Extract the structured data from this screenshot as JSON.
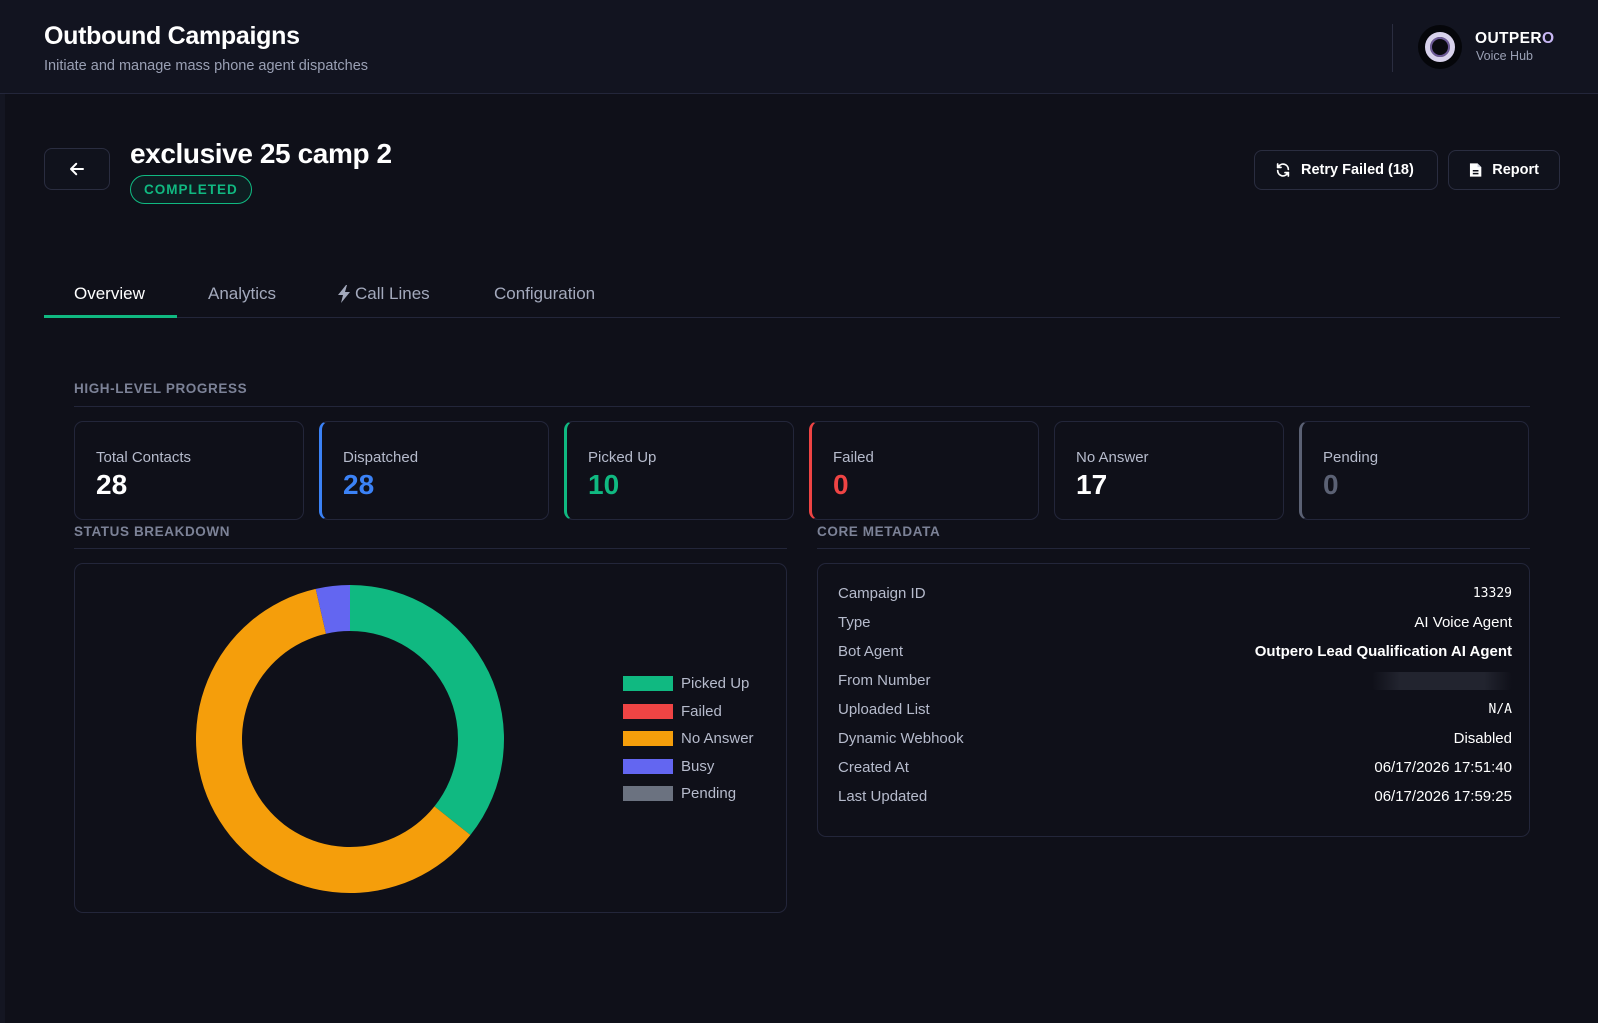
{
  "header": {
    "title": "Outbound Campaigns",
    "subtitle": "Initiate and manage mass phone agent dispatches",
    "brand": {
      "name_main": "OUTPER",
      "name_accent": "O",
      "sub": "Voice Hub"
    }
  },
  "campaign": {
    "name": "exclusive 25 camp 2",
    "status": "COMPLETED",
    "retry_label": "Retry Failed (18)",
    "report_label": "Report"
  },
  "tabs": [
    {
      "label": "Overview",
      "active": true
    },
    {
      "label": "Analytics",
      "active": false
    },
    {
      "label": "Call Lines",
      "active": false,
      "icon": "bolt-icon"
    },
    {
      "label": "Configuration",
      "active": false
    }
  ],
  "progress": {
    "section_label": "HIGH-LEVEL PROGRESS",
    "cards": [
      {
        "label": "Total Contacts",
        "value": "28",
        "color": "#ffffff"
      },
      {
        "label": "Dispatched",
        "value": "28",
        "color": "#3b82f6"
      },
      {
        "label": "Picked Up",
        "value": "10",
        "color": "#10b981"
      },
      {
        "label": "Failed",
        "value": "0",
        "color": "#ef4444"
      },
      {
        "label": "No Answer",
        "value": "17",
        "color": "#ffffff"
      },
      {
        "label": "Pending",
        "value": "0",
        "color": "#5b6174"
      }
    ]
  },
  "breakdown": {
    "section_label": "STATUS BREAKDOWN"
  },
  "chart_data": {
    "type": "pie",
    "donut": true,
    "legend_position": "right",
    "categories": [
      "Picked Up",
      "Failed",
      "No Answer",
      "Busy",
      "Pending"
    ],
    "values": [
      10,
      0,
      17,
      1,
      0
    ],
    "colors": [
      "#10b981",
      "#ef4444",
      "#f59e0b",
      "#6366f1",
      "#6b7280"
    ]
  },
  "metadata": {
    "section_label": "CORE METADATA",
    "rows": [
      {
        "key": "Campaign ID",
        "value": "13329",
        "style": "mono"
      },
      {
        "key": "Type",
        "value": "AI Voice Agent",
        "style": ""
      },
      {
        "key": "Bot Agent",
        "value": "Outpero Lead Qualification AI Agent",
        "style": "bold"
      },
      {
        "key": "From Number",
        "value": "",
        "style": "redacted"
      },
      {
        "key": "Uploaded List",
        "value": "N/A",
        "style": "mono"
      },
      {
        "key": "Dynamic Webhook",
        "value": "Disabled",
        "style": ""
      },
      {
        "key": "Created At",
        "value": "06/17/2026 17:51:40",
        "style": ""
      },
      {
        "key": "Last Updated",
        "value": "06/17/2026 17:59:25",
        "style": ""
      }
    ]
  }
}
